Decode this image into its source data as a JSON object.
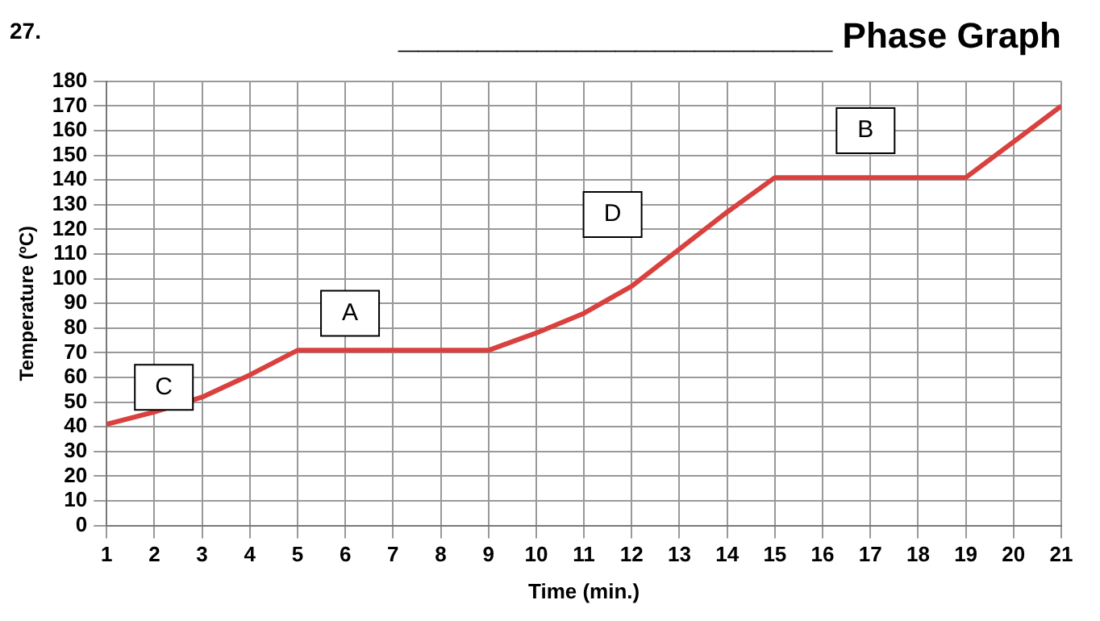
{
  "chart_data": {
    "type": "line",
    "title": "______________________ Phase Graph",
    "xlabel": "Time (min.)",
    "ylabel": "Temperature (ºC)",
    "x": [
      1,
      2,
      3,
      4,
      5,
      9,
      10,
      11,
      12,
      13,
      14,
      15,
      19,
      21
    ],
    "series": [
      {
        "color": "#d9413f",
        "values": [
          41,
          46,
          52,
          61,
          71,
          71,
          78,
          86,
          97,
          112,
          127,
          141,
          141,
          170
        ]
      }
    ],
    "xlim": [
      1,
      21
    ],
    "xticks": [
      1,
      2,
      3,
      4,
      5,
      6,
      7,
      8,
      9,
      10,
      11,
      12,
      13,
      14,
      15,
      16,
      17,
      18,
      19,
      20,
      21
    ],
    "ylim": [
      0,
      180
    ],
    "yticks": [
      0,
      10,
      20,
      30,
      40,
      50,
      60,
      70,
      80,
      90,
      100,
      110,
      120,
      130,
      140,
      150,
      160,
      170,
      180
    ],
    "grid": true,
    "legend": false,
    "marker": "none",
    "line_style": "solid",
    "annotations": [
      "27.",
      {
        "text": "C",
        "x": 2.2,
        "y": 56
      },
      {
        "text": "A",
        "x": 6.1,
        "y": 86
      },
      {
        "text": "D",
        "x": 11.6,
        "y": 126
      },
      {
        "text": "B",
        "x": 16.9,
        "y": 160
      }
    ]
  }
}
